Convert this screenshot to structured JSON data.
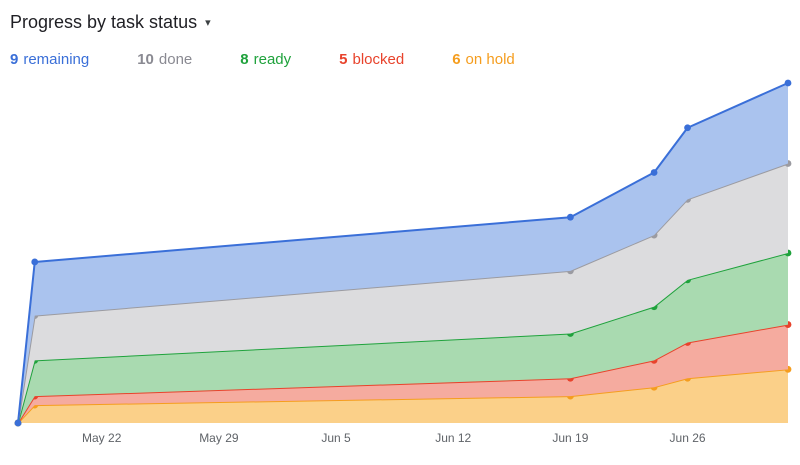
{
  "header": {
    "title": "Progress by task status",
    "caret": "▾"
  },
  "legend": [
    {
      "count": "9",
      "label": "remaining",
      "color": "#3a6fd8"
    },
    {
      "count": "10",
      "label": "done",
      "color": "#8a8a92"
    },
    {
      "count": "8",
      "label": "ready",
      "color": "#1fa23c"
    },
    {
      "count": "5",
      "label": "blocked",
      "color": "#e8432c"
    },
    {
      "count": "6",
      "label": "on hold",
      "color": "#f59d1e"
    }
  ],
  "chart_data": {
    "type": "area",
    "stacked": true,
    "title": "Progress by task status",
    "x_days": [
      0,
      1,
      33,
      38,
      40,
      46
    ],
    "x_axis_ticks": {
      "days": [
        5,
        12,
        19,
        26,
        33,
        40
      ],
      "labels": [
        "May 22",
        "May 29",
        "Jun 5",
        "Jun 12",
        "Jun 19",
        "Jun 26"
      ]
    },
    "ylim": [
      0,
      38
    ],
    "grid": false,
    "legend_position": "top",
    "series_bottom_to_top": [
      {
        "name": "on hold",
        "values": [
          0,
          2,
          3,
          4,
          5,
          6
        ],
        "color": "#f59d1e",
        "fill": "#fbd089"
      },
      {
        "name": "blocked",
        "values": [
          0,
          1,
          2,
          3,
          4,
          5
        ],
        "color": "#e8432c",
        "fill": "#f5ab9f"
      },
      {
        "name": "ready",
        "values": [
          0,
          4,
          5,
          6,
          7,
          8
        ],
        "color": "#1fa23c",
        "fill": "#a9dab0"
      },
      {
        "name": "done",
        "values": [
          0,
          5,
          7,
          8,
          9,
          10
        ],
        "color": "#9b9ba1",
        "fill": "#dcdcde"
      },
      {
        "name": "remaining",
        "values": [
          0,
          6,
          6,
          7,
          8,
          9
        ],
        "color": "#3a6fd8",
        "fill": "#aac3ee"
      }
    ]
  }
}
